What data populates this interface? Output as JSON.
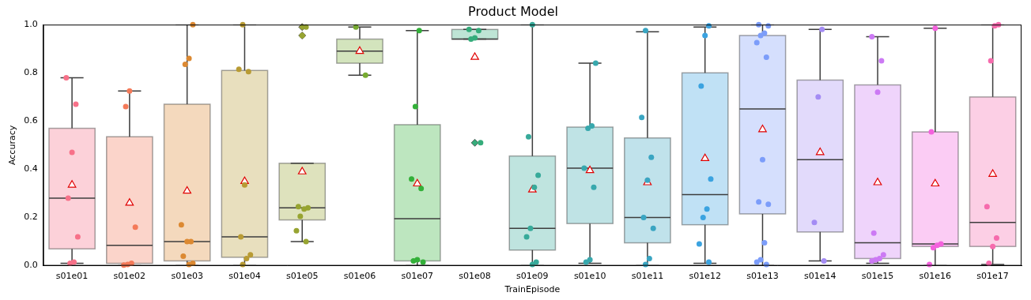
{
  "chart_data": {
    "type": "box",
    "title": "Product Model",
    "x_label": "TrainEpisode",
    "y_label": "Accuracy",
    "categories": [
      "s01e01",
      "s01e02",
      "s01e03",
      "s01e04",
      "s01e05",
      "s01e06",
      "s01e07",
      "s01e08",
      "s01e09",
      "s01e10",
      "s01e11",
      "s01e12",
      "s01e13",
      "s01e14",
      "s01e15",
      "s01e16",
      "s01e17"
    ],
    "colors": [
      "#f77189",
      "#f47a59",
      "#dc8932",
      "#b89b34",
      "#97a431",
      "#77ab31",
      "#33b039",
      "#35ac7b",
      "#37aa9a",
      "#38a8ad",
      "#3aa5c2",
      "#3ba3e0",
      "#7c9dfa",
      "#a48cf4",
      "#cc7af4",
      "#f461dd",
      "#f66bad"
    ],
    "q1": [
      0.07,
      0.01,
      0.02,
      0.035,
      0.19,
      0.84,
      0.02,
      0.94,
      0.065,
      0.175,
      0.095,
      0.17,
      0.215,
      0.14,
      0.03,
      0.08,
      0.08
    ],
    "median": [
      0.28,
      0.085,
      0.1,
      0.12,
      0.24,
      0.89,
      0.195,
      0.94,
      0.155,
      0.405,
      0.2,
      0.295,
      0.65,
      0.44,
      0.095,
      0.09,
      0.18
    ],
    "q3": [
      0.57,
      0.535,
      0.67,
      0.81,
      0.425,
      0.94,
      0.585,
      0.98,
      0.455,
      0.575,
      0.53,
      0.8,
      0.955,
      0.77,
      0.75,
      0.555,
      0.7
    ],
    "whisker_low": [
      0.01,
      0.0,
      0.0,
      0.0,
      0.1,
      0.79,
      0.0,
      0.94,
      0.0,
      0.01,
      0.0,
      0.01,
      0.0,
      0.02,
      0.01,
      0.0,
      0.005
    ],
    "whisker_high": [
      0.78,
      0.725,
      1.0,
      1.0,
      0.425,
      0.99,
      0.975,
      0.98,
      1.0,
      0.84,
      0.97,
      0.99,
      1.0,
      0.98,
      0.95,
      0.985,
      1.0
    ],
    "mean": [
      0.335,
      0.26,
      0.31,
      0.35,
      0.39,
      0.89,
      0.34,
      0.865,
      0.315,
      0.395,
      0.345,
      0.445,
      0.565,
      0.47,
      0.345,
      0.34,
      0.38
    ],
    "points": [
      [
        0.78,
        0.67,
        0.47,
        0.28,
        0.12,
        0.015,
        0.01
      ],
      [
        0.725,
        0.66,
        0.16,
        0.01,
        0.005,
        0.003
      ],
      [
        1.0,
        0.86,
        0.835,
        0.17,
        0.1,
        0.1,
        0.04,
        0.01,
        0.005
      ],
      [
        1.0,
        0.815,
        0.805,
        0.335,
        0.12,
        0.045,
        0.03,
        0.005
      ],
      [
        0.99,
        0.955,
        0.245,
        0.24,
        0.235,
        0.205,
        0.145,
        0.1
      ],
      [
        0.99,
        0.79
      ],
      [
        0.975,
        0.66,
        0.36,
        0.32,
        0.025,
        0.02,
        0.015
      ],
      [
        0.98,
        0.975,
        0.945,
        0.94,
        0.51
      ],
      [
        1.0,
        0.535,
        0.375,
        0.325,
        0.155,
        0.12,
        0.015,
        0.005
      ],
      [
        0.84,
        0.58,
        0.57,
        0.405,
        0.325,
        0.025,
        0.015
      ],
      [
        0.975,
        0.615,
        0.45,
        0.355,
        0.2,
        0.155,
        0.03,
        0.005
      ],
      [
        0.995,
        0.955,
        0.745,
        0.36,
        0.235,
        0.2,
        0.09,
        0.015
      ],
      [
        1.0,
        0.995,
        0.965,
        0.955,
        0.925,
        0.865,
        0.44,
        0.265,
        0.255,
        0.095,
        0.025,
        0.015,
        0.005
      ],
      [
        0.98,
        0.7,
        0.18,
        0.02
      ],
      [
        0.95,
        0.85,
        0.72,
        0.135,
        0.045,
        0.03,
        0.025,
        0.02
      ],
      [
        0.985,
        0.555,
        0.09,
        0.085,
        0.075,
        0.005
      ],
      [
        1.0,
        0.995,
        0.85,
        0.245,
        0.115,
        0.08,
        0.01
      ]
    ],
    "outliers": [
      [],
      [],
      [],
      [],
      [
        0.99,
        0.955
      ],
      [],
      [],
      [
        0.51
      ],
      [],
      [],
      [],
      [],
      [],
      [],
      [],
      [],
      []
    ],
    "ylim": [
      0,
      1
    ],
    "yticks": [
      {
        "value": 0,
        "label": "0.0"
      },
      0.2,
      0.4,
      0.6,
      0.8,
      {
        "value": 1,
        "label": "1.0"
      }
    ],
    "grid": false
  }
}
